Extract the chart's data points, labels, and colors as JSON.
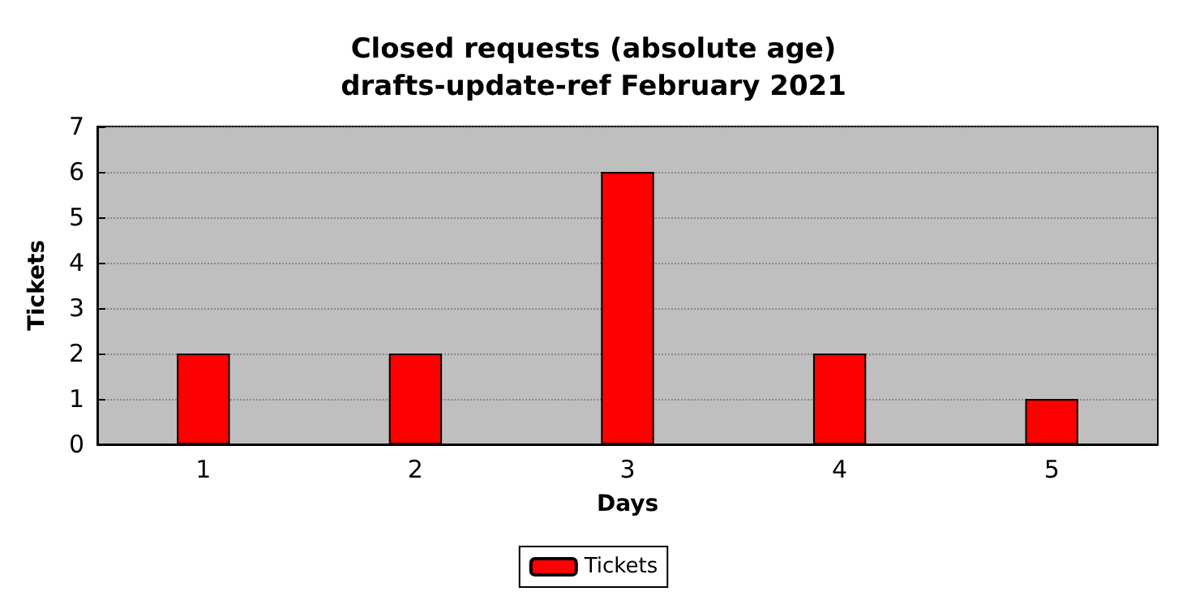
{
  "chart_data": {
    "type": "bar",
    "title": "Closed requests (absolute age)\ndrafts-update-ref February 2021",
    "xlabel": "Days",
    "ylabel": "Tickets",
    "categories": [
      "1",
      "2",
      "3",
      "4",
      "5"
    ],
    "series": [
      {
        "name": "Tickets",
        "color": "#ff0000",
        "values": [
          2,
          2,
          6,
          2,
          1
        ]
      }
    ],
    "ylim": [
      0,
      7
    ],
    "yticks": [
      0,
      1,
      2,
      3,
      4,
      5,
      6,
      7
    ],
    "grid": "y",
    "legend": "bottom"
  }
}
